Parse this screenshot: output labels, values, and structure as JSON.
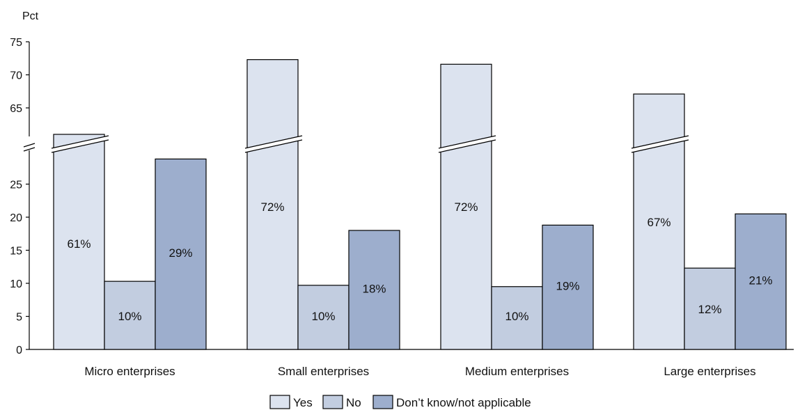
{
  "chart_data": {
    "type": "bar",
    "title": "",
    "xlabel": "",
    "ylabel": "Pct",
    "y_axis": {
      "break": {
        "from": 30,
        "to": 60
      },
      "lower_range": [
        0,
        30
      ],
      "upper_range": [
        60,
        75
      ],
      "lower_ticks": [
        "0",
        "5",
        "10",
        "15",
        "20",
        "25"
      ],
      "upper_ticks": [
        "65",
        "70",
        "75"
      ]
    },
    "categories": [
      "Micro enterprises",
      "Small enterprises",
      "Medium enterprises",
      "Large enterprises"
    ],
    "series": [
      {
        "name": "Yes",
        "color": "#dce3ef",
        "values": [
          61,
          72.3,
          71.6,
          67.1
        ],
        "labels": [
          "61%",
          "72%",
          "72%",
          "67%"
        ]
      },
      {
        "name": "No",
        "color": "#c2cde0",
        "values": [
          10.3,
          9.7,
          9.5,
          12.3
        ],
        "labels": [
          "10%",
          "10%",
          "10%",
          "12%"
        ]
      },
      {
        "name": "Don’t know/not applicable",
        "color": "#9daecd",
        "values": [
          28.8,
          18,
          18.8,
          20.5
        ],
        "labels": [
          "29%",
          "18%",
          "19%",
          "21%"
        ]
      }
    ],
    "legend": {
      "position": "bottom-center"
    },
    "grid": false
  }
}
